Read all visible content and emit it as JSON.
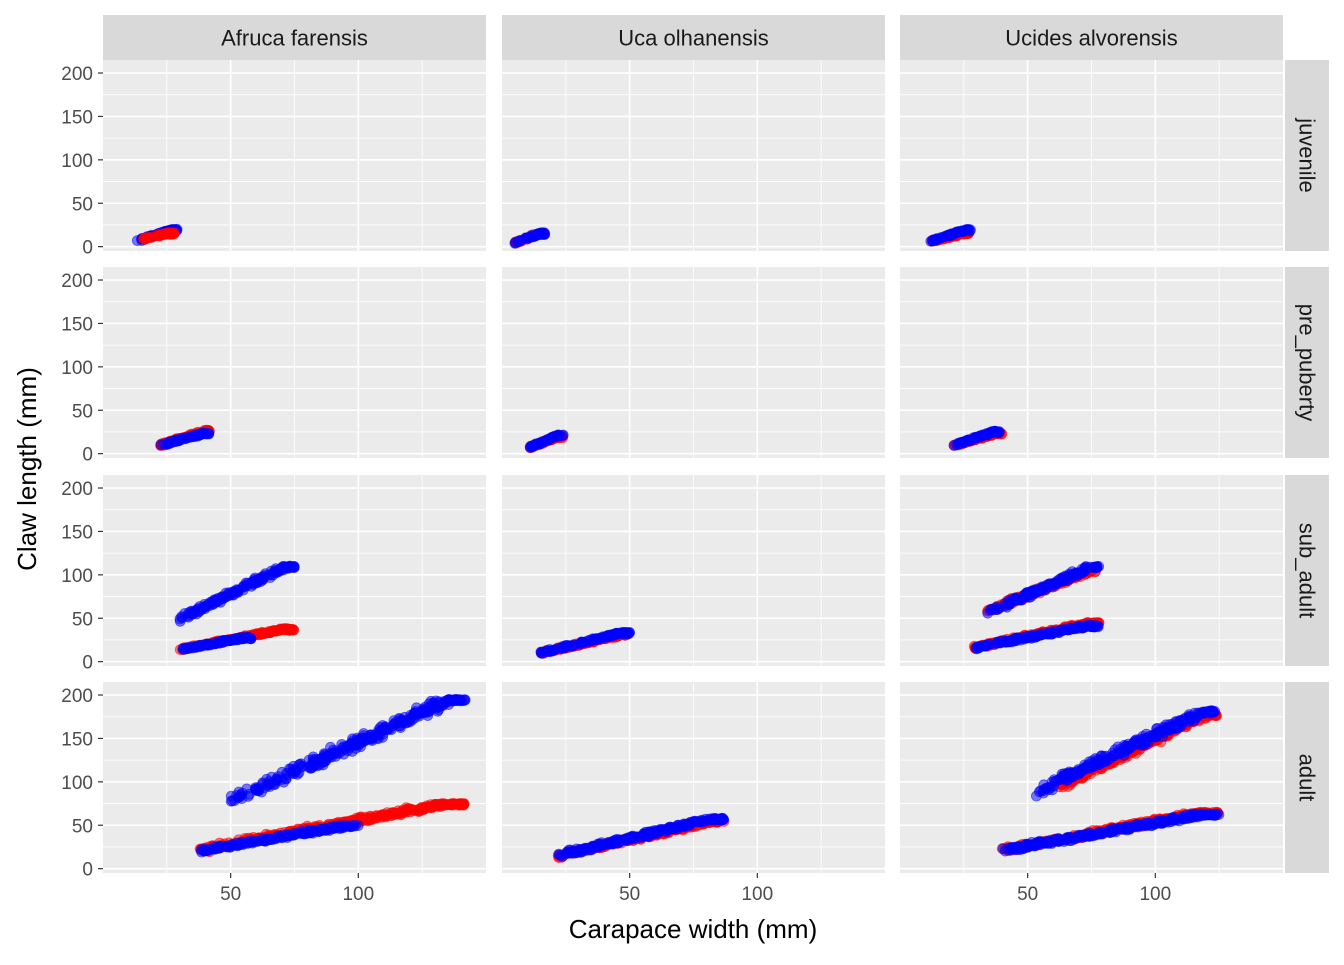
{
  "chart_data": {
    "type": "scatter",
    "facet_rows_position": "right",
    "facet_cols_position": "top",
    "xlabel": "Carapace width (mm)",
    "ylabel": "Claw length (mm)",
    "xlim": [
      0,
      150
    ],
    "ylim": [
      -5,
      215
    ],
    "x_ticks": [
      50,
      100
    ],
    "y_ticks": [
      0,
      50,
      100,
      150,
      200
    ],
    "x_ticks_label": [
      "50",
      "100"
    ],
    "y_ticks_label": [
      "0",
      "50",
      "100",
      "150",
      "200"
    ],
    "grid": true,
    "legend": "none",
    "panel_background": "#EBEBEB",
    "strip_background": "#D9D9D9",
    "series_colors": [
      "#FF0000",
      "#0000FF"
    ],
    "facet_cols": [
      "Afruca farensis",
      "Uca olhanensis",
      "Ucides alvorensis"
    ],
    "facet_rows": [
      "juvenile",
      "pre_puberty",
      "sub_adult",
      "adult"
    ],
    "panels": [
      {
        "row": 0,
        "col": 0,
        "clusters": [
          {
            "series": 1,
            "x_range": [
              13,
              29
            ],
            "y_range": [
              5,
              20
            ]
          },
          {
            "series": 0,
            "x_range": [
              15,
              28
            ],
            "y_range": [
              7,
              16
            ]
          }
        ]
      },
      {
        "row": 0,
        "col": 1,
        "clusters": [
          {
            "series": 0,
            "x_range": [
              5,
              17
            ],
            "y_range": [
              3,
              16
            ]
          },
          {
            "series": 1,
            "x_range": [
              5,
              17
            ],
            "y_range": [
              3,
              16
            ]
          }
        ]
      },
      {
        "row": 0,
        "col": 2,
        "clusters": [
          {
            "series": 0,
            "x_range": [
              12,
              28
            ],
            "y_range": [
              5,
              16
            ]
          },
          {
            "series": 1,
            "x_range": [
              12,
              28
            ],
            "y_range": [
              5,
              20
            ]
          }
        ]
      },
      {
        "row": 1,
        "col": 0,
        "clusters": [
          {
            "series": 0,
            "x_range": [
              22,
              42
            ],
            "y_range": [
              8,
              27
            ]
          },
          {
            "series": 1,
            "x_range": [
              22,
              42
            ],
            "y_range": [
              8,
              24
            ]
          }
        ]
      },
      {
        "row": 1,
        "col": 1,
        "clusters": [
          {
            "series": 0,
            "x_range": [
              11,
              24
            ],
            "y_range": [
              6,
              20
            ]
          },
          {
            "series": 1,
            "x_range": [
              11,
              24
            ],
            "y_range": [
              6,
              22
            ]
          }
        ]
      },
      {
        "row": 1,
        "col": 2,
        "clusters": [
          {
            "series": 0,
            "x_range": [
              21,
              40
            ],
            "y_range": [
              8,
              24
            ]
          },
          {
            "series": 1,
            "x_range": [
              21,
              39
            ],
            "y_range": [
              8,
              26
            ]
          }
        ]
      },
      {
        "row": 2,
        "col": 0,
        "clusters": [
          {
            "series": 0,
            "x_range": [
              30,
              75
            ],
            "y_range": [
              12,
              38
            ]
          },
          {
            "series": 1,
            "x_range": [
              30,
              58
            ],
            "y_range": [
              12,
              28
            ]
          },
          {
            "series": 1,
            "x_range": [
              30,
              75
            ],
            "y_range": [
              45,
              110
            ]
          }
        ]
      },
      {
        "row": 2,
        "col": 1,
        "clusters": [
          {
            "series": 0,
            "x_range": [
              15,
              50
            ],
            "y_range": [
              8,
              32
            ]
          },
          {
            "series": 1,
            "x_range": [
              15,
              50
            ],
            "y_range": [
              8,
              34
            ]
          }
        ]
      },
      {
        "row": 2,
        "col": 2,
        "clusters": [
          {
            "series": 0,
            "x_range": [
              29,
              78
            ],
            "y_range": [
              14,
              45
            ]
          },
          {
            "series": 1,
            "x_range": [
              29,
              78
            ],
            "y_range": [
              14,
              42
            ]
          },
          {
            "series": 0,
            "x_range": [
              34,
              77
            ],
            "y_range": [
              55,
              105
            ]
          },
          {
            "series": 1,
            "x_range": [
              34,
              78
            ],
            "y_range": [
              52,
              110
            ]
          }
        ]
      },
      {
        "row": 3,
        "col": 0,
        "clusters": [
          {
            "series": 0,
            "x_range": [
              38,
              142
            ],
            "y_range": [
              18,
              75
            ]
          },
          {
            "series": 1,
            "x_range": [
              38,
              100
            ],
            "y_range": [
              18,
              50
            ]
          },
          {
            "series": 1,
            "x_range": [
              50,
              142
            ],
            "y_range": [
              70,
              195
            ]
          }
        ]
      },
      {
        "row": 3,
        "col": 1,
        "clusters": [
          {
            "series": 0,
            "x_range": [
              22,
              87
            ],
            "y_range": [
              12,
              55
            ]
          },
          {
            "series": 1,
            "x_range": [
              22,
              87
            ],
            "y_range": [
              12,
              58
            ]
          }
        ]
      },
      {
        "row": 3,
        "col": 2,
        "clusters": [
          {
            "series": 0,
            "x_range": [
              40,
              125
            ],
            "y_range": [
              18,
              65
            ]
          },
          {
            "series": 1,
            "x_range": [
              40,
              125
            ],
            "y_range": [
              18,
              63
            ]
          },
          {
            "series": 0,
            "x_range": [
              62,
              124
            ],
            "y_range": [
              88,
              178
            ]
          },
          {
            "series": 1,
            "x_range": [
              52,
              124
            ],
            "y_range": [
              80,
              182
            ]
          }
        ]
      }
    ]
  }
}
